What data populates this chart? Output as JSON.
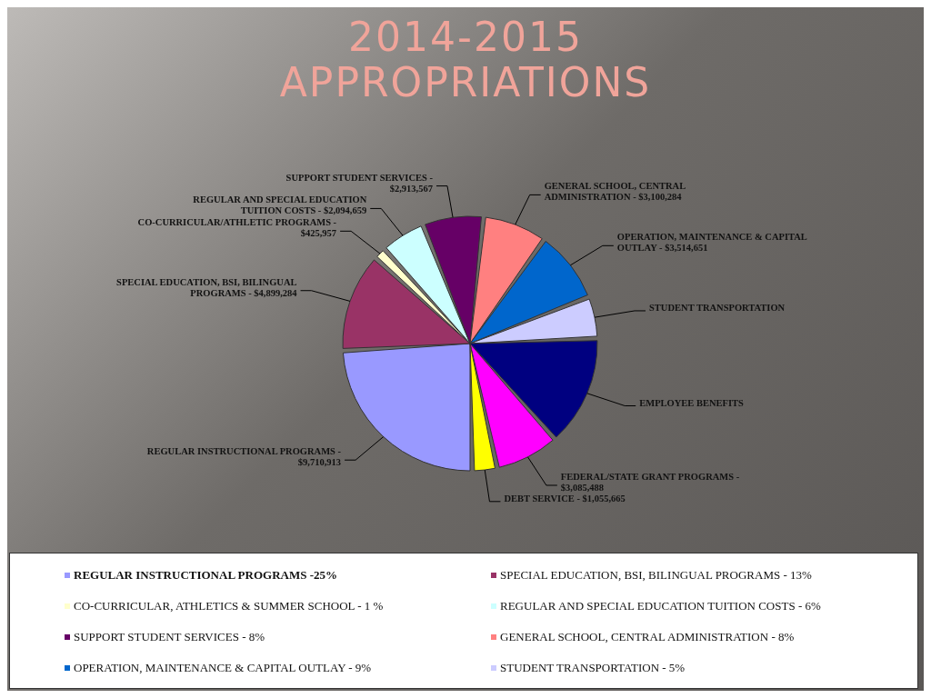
{
  "chart_data": {
    "type": "pie",
    "title": "2014-2015 APPROPRIATIONS",
    "categories": [
      "REGULAR INSTRUCTIONAL PROGRAMS -",
      "SPECIAL EDUCATION, BSI, BILINGUAL PROGRAMS -",
      "CO-CURRICULAR/ATHLETIC PROGRAMS -",
      "REGULAR AND SPECIAL EDUCATION TUITION COSTS -",
      "SUPPORT STUDENT SERVICES -",
      "GENERAL SCHOOL, CENTRAL ADMINISTRATION -",
      "OPERATION, MAINTENANCE & CAPITAL OUTLAY -",
      "STUDENT TRANSPORTATION",
      "EMPLOYEE BENEFITS",
      "FEDERAL/STATE GRANT PROGRAMS -",
      "DEBT SERVICE -"
    ],
    "values": [
      9710913,
      4899284,
      425957,
      2094659,
      2913567,
      3100284,
      3514651,
      1940000,
      5515000,
      3085488,
      1055665
    ],
    "value_labels": [
      "$9,710,913",
      "$4,899,284",
      "$425,957",
      "$2,094,659",
      "$2,913,567",
      "$3,100,284",
      "$3,514,651",
      null,
      null,
      "$3,085,488",
      "$1,055,665"
    ],
    "colors": [
      "#9999ff",
      "#993366",
      "#ffffcc",
      "#ccffff",
      "#660066",
      "#ff8080",
      "#0066cc",
      "#ccccff",
      "#000080",
      "#ff00ff",
      "#ffff00"
    ],
    "annotations": [
      "REGULAR INSTRUCTIONAL PROGRAMS -25%",
      "SPECIAL EDUCATION, BSI, BILINGUAL PROGRAMS - 13%",
      "CO-CURRICULAR, ATHLETICS & SUMMER SCHOOL - 1 %",
      "REGULAR AND SPECIAL EDUCATION TUITION COSTS - 6%",
      "SUPPORT STUDENT SERVICES - 8%",
      "GENERAL SCHOOL, CENTRAL ADMINISTRATION - 8%",
      "OPERATION, MAINTENANCE & CAPITAL OUTLAY - 9%",
      "STUDENT TRANSPORTATION - 5%"
    ]
  }
}
